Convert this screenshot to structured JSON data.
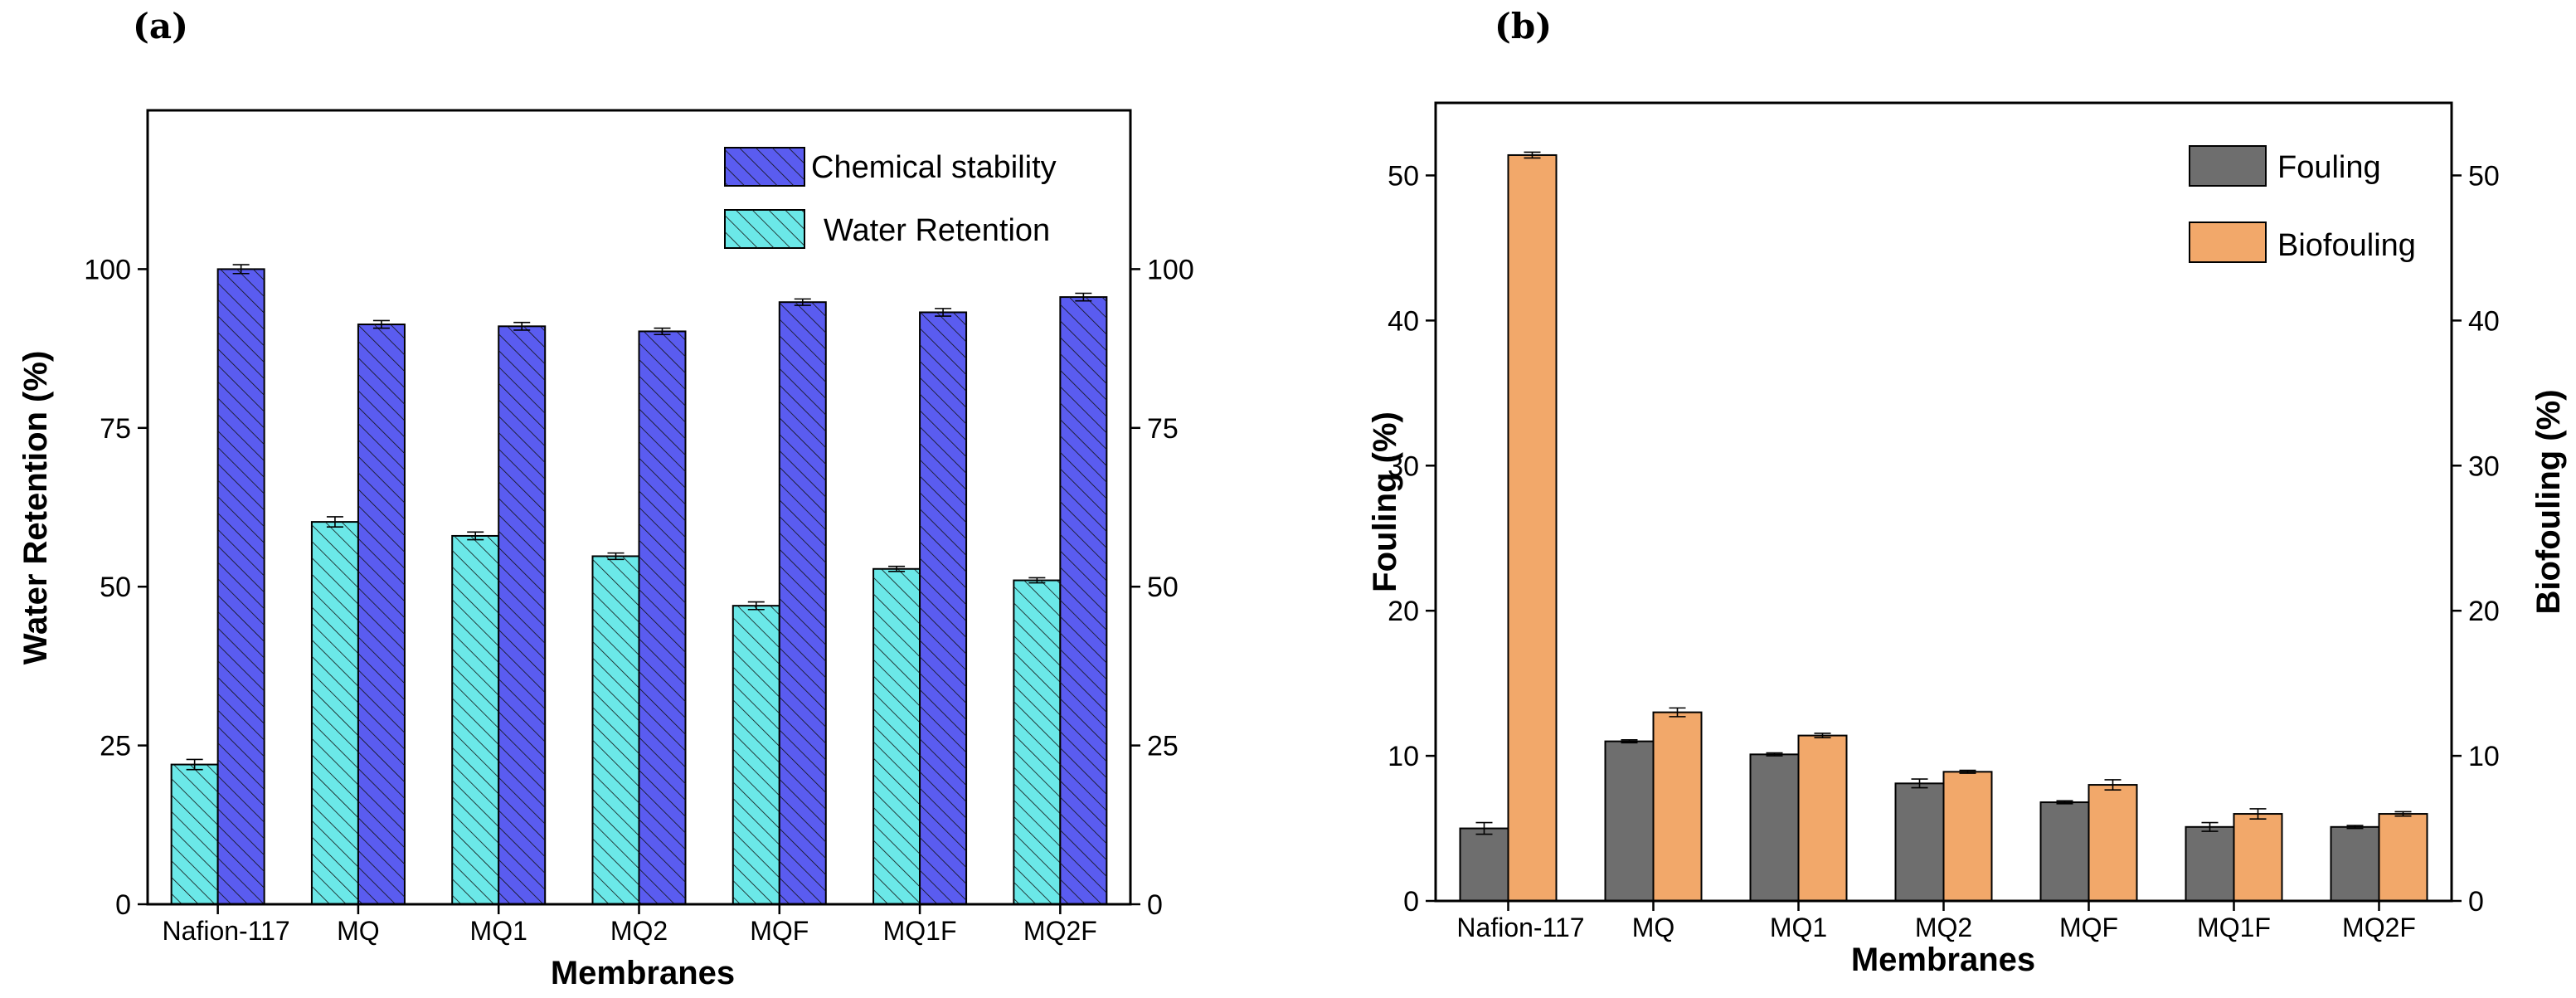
{
  "panels": [
    "(a)",
    "(b)"
  ],
  "chart_data": [
    {
      "type": "bar",
      "panel": "(a)",
      "categories": [
        "Nafion-117",
        "MQ",
        "MQ1",
        "MQ2",
        "MQF",
        "MQ1F",
        "MQ2F"
      ],
      "series": [
        {
          "name": "Water Retention",
          "values": [
            22,
            60.2,
            58,
            54.8,
            47,
            52.8,
            51
          ],
          "errors": [
            0.8,
            0.8,
            0.6,
            0.5,
            0.6,
            0.4,
            0.4
          ],
          "color": "#6be8e8"
        },
        {
          "name": "Chemical stability",
          "values": [
            100,
            91.3,
            91,
            90.2,
            94.8,
            93.2,
            95.6
          ],
          "errors": [
            0.7,
            0.6,
            0.6,
            0.5,
            0.5,
            0.6,
            0.6
          ],
          "color": "#5a5cf0"
        }
      ],
      "xlabel": "Membranes",
      "ylabel": "Water Retention (%)",
      "ylim": [
        0,
        125
      ],
      "yticks": [
        "0",
        "25",
        "50",
        "75",
        "100"
      ],
      "y2ticks": [
        "0",
        "25",
        "50",
        "75",
        "100"
      ],
      "legend": "top-right"
    },
    {
      "type": "bar",
      "panel": "(b)",
      "categories": [
        "Nafion-117",
        "MQ",
        "MQ1",
        "MQ2",
        "MQF",
        "MQ1F",
        "MQ2F"
      ],
      "series": [
        {
          "name": "Fouling",
          "values": [
            5,
            11,
            10.1,
            8.1,
            6.8,
            5.1,
            5.1
          ],
          "errors": [
            0.4,
            0.1,
            0.1,
            0.3,
            0.1,
            0.3,
            0.1
          ],
          "color": "#6e6e6e"
        },
        {
          "name": "Biofouling",
          "values": [
            51.4,
            13,
            11.4,
            8.9,
            8,
            6,
            6
          ],
          "errors": [
            0.2,
            0.3,
            0.15,
            0.1,
            0.35,
            0.35,
            0.15
          ],
          "color": "#f2a86a"
        }
      ],
      "xlabel": "Membranes",
      "ylabel": "Fouling (%)",
      "y2label": "Biofouling (%)",
      "ylim": [
        0,
        55
      ],
      "yticks": [
        "0",
        "10",
        "20",
        "30",
        "40",
        "50"
      ],
      "y2ticks": [
        "0",
        "10",
        "20",
        "30",
        "40",
        "50"
      ],
      "legend": "top-right"
    }
  ]
}
